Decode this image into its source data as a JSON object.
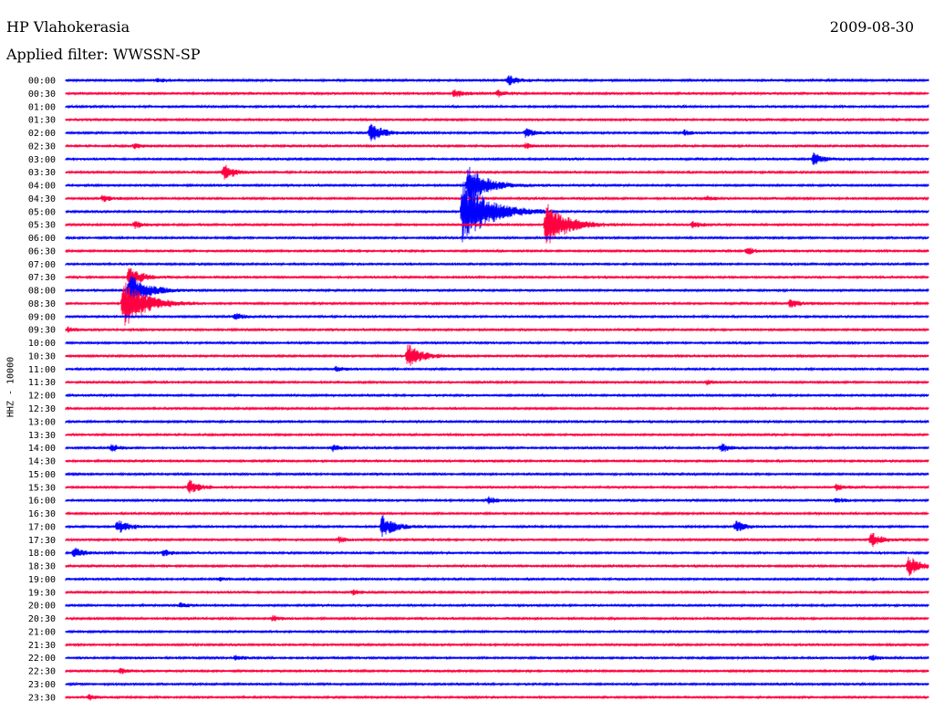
{
  "header": {
    "station": "HP Vlahokerasia",
    "date": "2009-08-30",
    "filter": "Applied filter: WWSSN-SP"
  },
  "chart_data": {
    "type": "line",
    "title": "HP Vlahokerasia",
    "subtitle": "Applied filter: WWSSN-SP",
    "ylabel": "HHZ - 10000",
    "colors": [
      "#0000ff",
      "#ff0040"
    ],
    "x_range_minutes": [
      0,
      30
    ],
    "rows": [
      {
        "label": "00:00",
        "events": [
          {
            "t": 15.4,
            "a": 6
          },
          {
            "t": 3.2,
            "a": 2
          }
        ]
      },
      {
        "label": "00:30",
        "events": [
          {
            "t": 13.5,
            "a": 5
          },
          {
            "t": 15.0,
            "a": 4
          }
        ]
      },
      {
        "label": "01:00",
        "events": []
      },
      {
        "label": "01:30",
        "events": []
      },
      {
        "label": "02:00",
        "events": [
          {
            "t": 10.6,
            "a": 11
          },
          {
            "t": 16.0,
            "a": 5
          },
          {
            "t": 21.5,
            "a": 3
          }
        ]
      },
      {
        "label": "02:30",
        "events": [
          {
            "t": 2.4,
            "a": 3
          },
          {
            "t": 16.0,
            "a": 3
          }
        ]
      },
      {
        "label": "03:00",
        "events": [
          {
            "t": 26.0,
            "a": 7
          }
        ]
      },
      {
        "label": "03:30",
        "events": [
          {
            "t": 5.5,
            "a": 9
          }
        ]
      },
      {
        "label": "04:00",
        "events": [
          {
            "t": 14.0,
            "a": 22
          }
        ]
      },
      {
        "label": "04:30",
        "events": [
          {
            "t": 1.3,
            "a": 4
          },
          {
            "t": 22.3,
            "a": 3
          }
        ]
      },
      {
        "label": "05:00",
        "events": [
          {
            "t": 13.8,
            "a": 36
          }
        ]
      },
      {
        "label": "05:30",
        "events": [
          {
            "t": 16.7,
            "a": 25
          },
          {
            "t": 2.4,
            "a": 4
          },
          {
            "t": 21.8,
            "a": 4
          }
        ]
      },
      {
        "label": "06:00",
        "events": []
      },
      {
        "label": "06:30",
        "events": [
          {
            "t": 23.7,
            "a": 4
          }
        ]
      },
      {
        "label": "07:00",
        "events": []
      },
      {
        "label": "07:30",
        "events": [
          {
            "t": 2.2,
            "a": 12
          }
        ]
      },
      {
        "label": "08:00",
        "events": [
          {
            "t": 2.2,
            "a": 20
          }
        ]
      },
      {
        "label": "08:30",
        "events": [
          {
            "t": 2.0,
            "a": 28
          },
          {
            "t": 25.2,
            "a": 5
          }
        ]
      },
      {
        "label": "09:00",
        "events": [
          {
            "t": 5.9,
            "a": 4
          }
        ]
      },
      {
        "label": "09:30",
        "events": [
          {
            "t": 0.1,
            "a": 3
          }
        ]
      },
      {
        "label": "10:00",
        "events": []
      },
      {
        "label": "10:30",
        "events": [
          {
            "t": 11.9,
            "a": 14
          }
        ]
      },
      {
        "label": "11:00",
        "events": [
          {
            "t": 9.4,
            "a": 3
          }
        ]
      },
      {
        "label": "11:30",
        "events": [
          {
            "t": 22.3,
            "a": 3
          }
        ]
      },
      {
        "label": "12:00",
        "events": []
      },
      {
        "label": "12:30",
        "events": []
      },
      {
        "label": "13:00",
        "events": []
      },
      {
        "label": "13:30",
        "events": []
      },
      {
        "label": "14:00",
        "events": [
          {
            "t": 1.6,
            "a": 4
          },
          {
            "t": 9.3,
            "a": 4
          },
          {
            "t": 22.8,
            "a": 5
          }
        ]
      },
      {
        "label": "14:30",
        "events": []
      },
      {
        "label": "15:00",
        "events": []
      },
      {
        "label": "15:30",
        "events": [
          {
            "t": 4.3,
            "a": 8
          },
          {
            "t": 26.8,
            "a": 4
          }
        ]
      },
      {
        "label": "16:00",
        "events": [
          {
            "t": 14.7,
            "a": 4
          },
          {
            "t": 26.8,
            "a": 3
          }
        ]
      },
      {
        "label": "16:30",
        "events": []
      },
      {
        "label": "17:00",
        "events": [
          {
            "t": 1.8,
            "a": 8
          },
          {
            "t": 11.0,
            "a": 12
          },
          {
            "t": 23.3,
            "a": 7
          }
        ]
      },
      {
        "label": "17:30",
        "events": [
          {
            "t": 9.5,
            "a": 3
          },
          {
            "t": 28.0,
            "a": 8
          }
        ]
      },
      {
        "label": "18:00",
        "events": [
          {
            "t": 0.3,
            "a": 6
          },
          {
            "t": 3.4,
            "a": 4
          }
        ]
      },
      {
        "label": "18:30",
        "events": [
          {
            "t": 29.3,
            "a": 11
          }
        ]
      },
      {
        "label": "19:00",
        "events": [
          {
            "t": 5.3,
            "a": 2
          }
        ]
      },
      {
        "label": "19:30",
        "events": [
          {
            "t": 10.0,
            "a": 3
          }
        ]
      },
      {
        "label": "20:00",
        "events": [
          {
            "t": 4.0,
            "a": 3
          }
        ]
      },
      {
        "label": "20:30",
        "events": [
          {
            "t": 7.2,
            "a": 3
          }
        ]
      },
      {
        "label": "21:00",
        "events": []
      },
      {
        "label": "21:30",
        "events": []
      },
      {
        "label": "22:00",
        "events": [
          {
            "t": 5.9,
            "a": 3
          },
          {
            "t": 28.0,
            "a": 3
          }
        ]
      },
      {
        "label": "22:30",
        "events": [
          {
            "t": 1.9,
            "a": 3
          }
        ]
      },
      {
        "label": "23:00",
        "events": []
      },
      {
        "label": "23:30",
        "events": [
          {
            "t": 0.8,
            "a": 3
          }
        ]
      }
    ]
  }
}
